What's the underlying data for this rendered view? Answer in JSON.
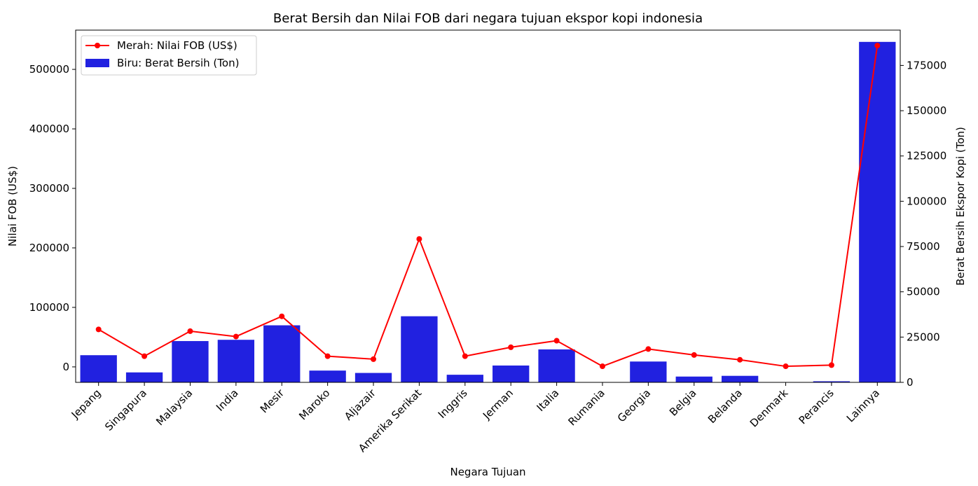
{
  "chart_data": {
    "type": "bar+line",
    "title": "Berat Bersih dan Nilai FOB dari negara tujuan ekspor kopi indonesia",
    "xlabel": "Negara Tujuan",
    "ylabel_left": "Nilai FOB (US$)",
    "ylabel_right": "Berat Bersih Ekspor Kopi (Ton)",
    "categories": [
      "Jepang",
      "Singapura",
      "Malaysia",
      "India",
      "Mesir",
      "Maroko",
      "Aljazair",
      "Amerika Serikat",
      "Inggris",
      "Jerman",
      "Italia",
      "Rumania",
      "Georgia",
      "Belgia",
      "Belanda",
      "Denmark",
      "Perancis",
      "Lainnya"
    ],
    "ylim_left": [
      -26000,
      566000
    ],
    "ylim_right": [
      0,
      194500
    ],
    "yticks_left": [
      "0",
      "100000",
      "200000",
      "300000",
      "400000",
      "500000"
    ],
    "yticks_right": [
      "0",
      "25000",
      "50000",
      "75000",
      "100000",
      "125000",
      "150000",
      "175000"
    ],
    "series": [
      {
        "name": "Merah: Nilai FOB (US$)",
        "axis": "left",
        "kind": "line",
        "color": "#ff0000",
        "values": [
          63000,
          18000,
          60000,
          51000,
          85000,
          18000,
          13000,
          215000,
          18000,
          33000,
          44000,
          1000,
          30000,
          20000,
          12000,
          1000,
          3000,
          540000
        ]
      },
      {
        "name": "Biru: Berat Bersih (Ton)",
        "axis": "right",
        "kind": "bar",
        "color": "#2121e0",
        "values": [
          15000,
          5500,
          22800,
          23500,
          31500,
          6500,
          5200,
          36500,
          4200,
          9300,
          18200,
          0,
          11500,
          3200,
          3600,
          0,
          600,
          188000
        ]
      }
    ],
    "legend_position": "top-left",
    "grid": false
  }
}
